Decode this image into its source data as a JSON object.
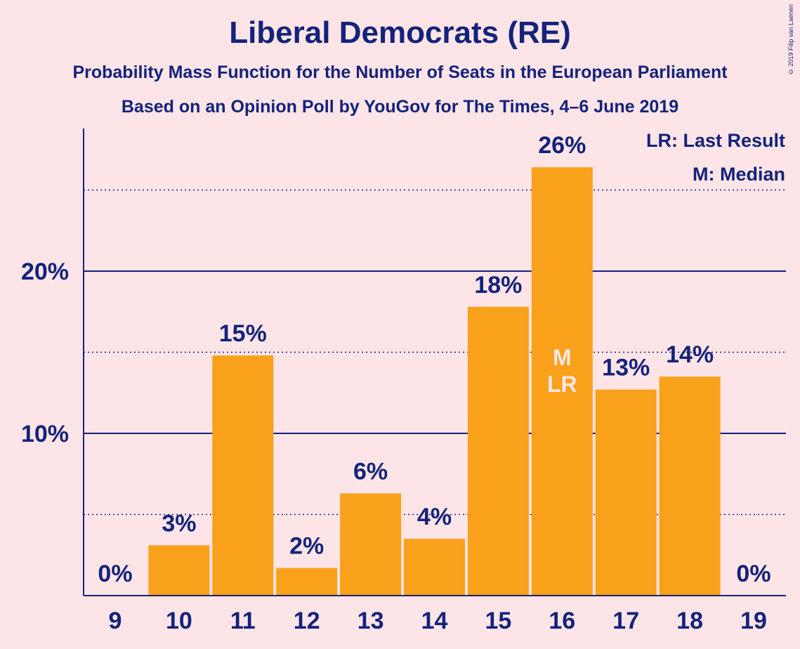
{
  "title": "Liberal Democrats (RE)",
  "subtitle_1": "Probability Mass Function for the Number of Seats in the European Parliament",
  "subtitle_2": "Based on an Opinion Poll by YouGov for The Times, 4–6 June 2019",
  "copyright": "© 2019 Filip van Laenen",
  "legend": [
    "LR: Last Result",
    "M: Median"
  ],
  "colors": {
    "background": "#fde4e7",
    "bar": "#f9a11b",
    "text": "#13237a",
    "marker_text": "#fde4e7"
  },
  "chart_data": {
    "type": "bar",
    "categories": [
      "9",
      "10",
      "11",
      "12",
      "13",
      "14",
      "15",
      "16",
      "17",
      "18",
      "19"
    ],
    "values": [
      0,
      3.1,
      14.8,
      1.7,
      6.3,
      3.5,
      17.8,
      26.4,
      12.7,
      13.5,
      0
    ],
    "value_labels": [
      "0%",
      "3%",
      "15%",
      "2%",
      "6%",
      "4%",
      "18%",
      "26%",
      "13%",
      "14%",
      "0%"
    ],
    "ylim": [
      0,
      28.7
    ],
    "yticks": [
      10,
      20
    ],
    "ytick_labels": [
      "10%",
      "20%"
    ],
    "minor_gridlines": [
      5,
      15,
      25
    ],
    "grid": true,
    "legend_position": "top-right",
    "markers": [
      {
        "category": "16",
        "labels": [
          "M",
          "LR"
        ]
      }
    ]
  }
}
